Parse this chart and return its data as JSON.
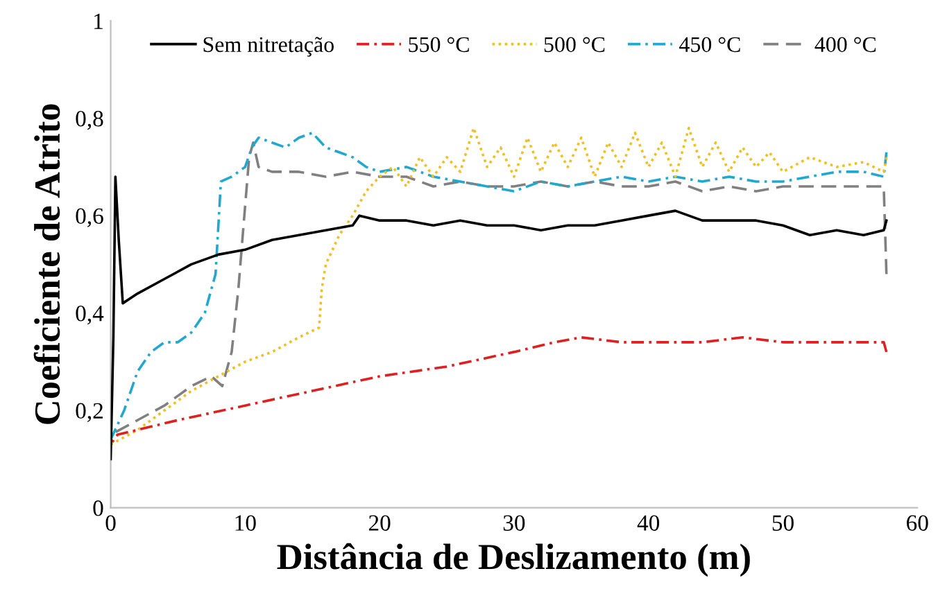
{
  "chart_data": {
    "type": "line",
    "xlabel": "Distância de Deslizamento (m)",
    "ylabel": "Coeficiente de Atrito",
    "xlim": [
      0,
      60
    ],
    "xticks": [
      0,
      10,
      20,
      30,
      40,
      50,
      60
    ],
    "ylim": [
      0,
      1
    ],
    "yticks": [
      0,
      {
        "value": 0.2,
        "label": "0,2"
      },
      {
        "value": 0.4,
        "label": "0,4"
      },
      {
        "value": 0.6,
        "label": "0,6"
      },
      {
        "value": 0.8,
        "label": "0,8"
      },
      1
    ],
    "grid": false,
    "legend": "top",
    "marker": "none",
    "series": [
      {
        "name": "Sem nitretação",
        "color": "#000000",
        "line_style": "solid",
        "x": [
          0,
          0.2,
          0.35,
          0.6,
          0.9,
          2,
          4,
          6,
          8,
          10,
          12,
          14,
          16,
          18,
          18.5,
          20,
          22,
          24,
          26,
          28,
          30,
          32,
          34,
          36,
          38,
          40,
          42,
          44,
          46,
          48,
          50,
          52,
          54,
          56,
          57.5,
          57.7
        ],
        "values": [
          0.1,
          0.35,
          0.68,
          0.55,
          0.42,
          0.44,
          0.47,
          0.5,
          0.52,
          0.53,
          0.55,
          0.56,
          0.57,
          0.58,
          0.6,
          0.59,
          0.59,
          0.58,
          0.59,
          0.58,
          0.58,
          0.57,
          0.58,
          0.58,
          0.59,
          0.6,
          0.61,
          0.59,
          0.59,
          0.59,
          0.58,
          0.56,
          0.57,
          0.56,
          0.57,
          0.59
        ]
      },
      {
        "name": "550 °C",
        "color": "#e02020",
        "line_style": "dashdot",
        "x": [
          0,
          0.5,
          2,
          5,
          10,
          15,
          20,
          25,
          30,
          33,
          35,
          38,
          40,
          44,
          47,
          50,
          55,
          57.5,
          57.7
        ],
        "values": [
          0.13,
          0.15,
          0.16,
          0.18,
          0.21,
          0.24,
          0.27,
          0.29,
          0.32,
          0.34,
          0.35,
          0.34,
          0.34,
          0.34,
          0.35,
          0.34,
          0.34,
          0.34,
          0.32
        ]
      },
      {
        "name": "500 °C",
        "color": "#f0c020",
        "line_style": "dotted",
        "x": [
          0,
          2,
          4,
          6,
          8,
          10,
          12,
          14,
          15.5,
          15.7,
          16,
          17,
          18,
          19,
          20,
          21,
          22,
          23,
          24,
          25,
          26,
          27,
          28,
          29,
          30,
          31,
          32,
          33,
          34,
          35,
          36,
          37,
          38,
          39,
          40,
          41,
          42,
          43,
          44,
          45,
          46,
          47,
          48,
          49,
          50,
          52,
          54,
          56,
          57.5,
          57.7
        ],
        "values": [
          0.13,
          0.16,
          0.2,
          0.24,
          0.27,
          0.3,
          0.32,
          0.35,
          0.37,
          0.45,
          0.5,
          0.56,
          0.6,
          0.65,
          0.68,
          0.7,
          0.66,
          0.72,
          0.68,
          0.72,
          0.69,
          0.78,
          0.7,
          0.74,
          0.68,
          0.76,
          0.69,
          0.75,
          0.7,
          0.76,
          0.68,
          0.75,
          0.7,
          0.77,
          0.7,
          0.75,
          0.68,
          0.78,
          0.7,
          0.75,
          0.69,
          0.74,
          0.7,
          0.73,
          0.69,
          0.72,
          0.7,
          0.71,
          0.69,
          0.72
        ]
      },
      {
        "name": "450 °C",
        "color": "#20a8d0",
        "line_style": "dashdot",
        "x": [
          0,
          1,
          2,
          3,
          4,
          5,
          6,
          7,
          7.8,
          8.2,
          9,
          10,
          10.5,
          11,
          12,
          13,
          14,
          15,
          16,
          17,
          18,
          19,
          20,
          22,
          24,
          26,
          28,
          30,
          32,
          34,
          36,
          38,
          40,
          42,
          44,
          46,
          48,
          50,
          52,
          54,
          56,
          57.5,
          57.7
        ],
        "values": [
          0.14,
          0.2,
          0.28,
          0.32,
          0.34,
          0.34,
          0.36,
          0.4,
          0.48,
          0.67,
          0.68,
          0.7,
          0.74,
          0.76,
          0.75,
          0.74,
          0.76,
          0.77,
          0.74,
          0.73,
          0.72,
          0.7,
          0.69,
          0.7,
          0.68,
          0.67,
          0.66,
          0.65,
          0.67,
          0.66,
          0.67,
          0.68,
          0.67,
          0.68,
          0.67,
          0.68,
          0.67,
          0.67,
          0.68,
          0.69,
          0.69,
          0.68,
          0.73
        ]
      },
      {
        "name": "400 °C",
        "color": "#808080",
        "line_style": "dashed",
        "x": [
          0,
          2,
          4,
          6,
          7.5,
          8.3,
          9,
          9.5,
          10,
          10.3,
          10.6,
          11,
          12,
          14,
          16,
          18,
          20,
          22,
          24,
          26,
          28,
          30,
          32,
          34,
          36,
          38,
          40,
          42,
          44,
          46,
          48,
          50,
          52,
          54,
          56,
          57.5,
          57.7
        ],
        "values": [
          0.15,
          0.18,
          0.21,
          0.25,
          0.27,
          0.25,
          0.32,
          0.45,
          0.62,
          0.72,
          0.75,
          0.7,
          0.69,
          0.69,
          0.68,
          0.69,
          0.68,
          0.68,
          0.66,
          0.67,
          0.66,
          0.66,
          0.67,
          0.66,
          0.67,
          0.66,
          0.66,
          0.67,
          0.65,
          0.66,
          0.65,
          0.66,
          0.66,
          0.66,
          0.66,
          0.66,
          0.48
        ]
      }
    ]
  }
}
